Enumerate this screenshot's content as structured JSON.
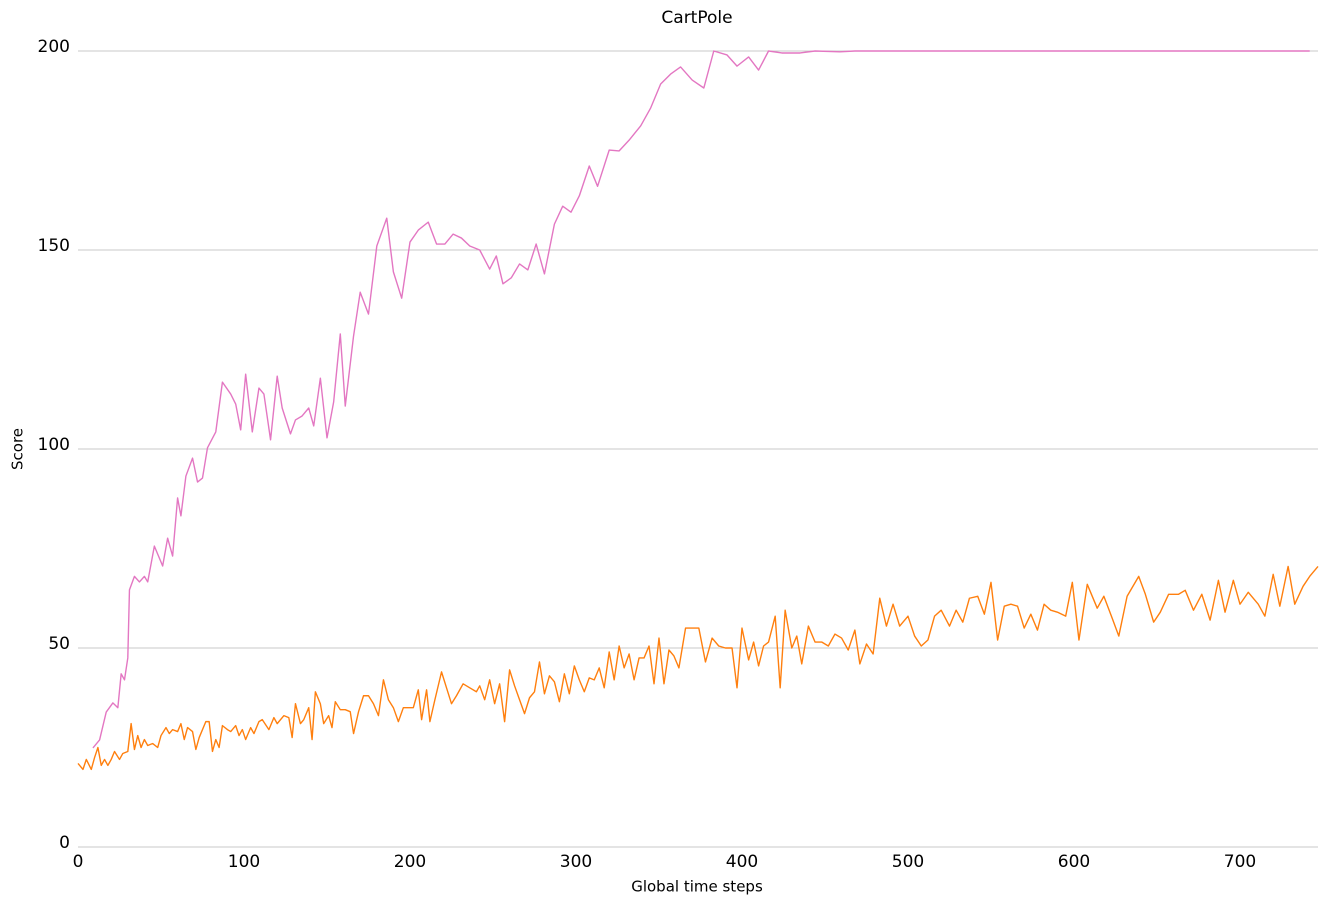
{
  "chart_data": {
    "type": "line",
    "title": "CartPole",
    "xlabel": "Global time steps",
    "ylabel": "Score",
    "xlim": [
      0,
      747
    ],
    "xticks": [
      0,
      100,
      200,
      300,
      400,
      500,
      600,
      700
    ],
    "ylim": [
      0,
      200
    ],
    "yticks": [
      0,
      50,
      100,
      150,
      200
    ],
    "grid": true,
    "series": [
      {
        "color": "#e377c2",
        "x": [
          9,
          13,
          17,
          21,
          24,
          26,
          28,
          30,
          31,
          34,
          37,
          40,
          42,
          46,
          51,
          54,
          57,
          60,
          62,
          65,
          69,
          72,
          75,
          78,
          83,
          87,
          92,
          95,
          98,
          101,
          105,
          109,
          112,
          116,
          120,
          123,
          128,
          131,
          135,
          139,
          142,
          146,
          150,
          154,
          158,
          161,
          166,
          170,
          175,
          180,
          186,
          190,
          195,
          200,
          205,
          211,
          216,
          221,
          226,
          231,
          236,
          242,
          248,
          252,
          256,
          261,
          266,
          271,
          276,
          281,
          287,
          292,
          297,
          302,
          308,
          313,
          320,
          326,
          332,
          339,
          345,
          351,
          357,
          363,
          370,
          377,
          383,
          391,
          397,
          404,
          410,
          416,
          424,
          435,
          444,
          459,
          468,
          500,
          600,
          700,
          742
        ],
        "values": [
          24.9,
          26.9,
          33.9,
          36.2,
          35,
          43.5,
          42,
          47.5,
          64.6,
          68,
          66.6,
          68,
          66.6,
          75.6,
          70.6,
          77.6,
          73.1,
          87.7,
          83.2,
          93.2,
          97.7,
          91.7,
          92.7,
          100.3,
          104.3,
          116.8,
          113.8,
          111.3,
          104.8,
          118.8,
          104.3,
          115.3,
          113.8,
          102.3,
          118.3,
          110.3,
          103.8,
          107.3,
          108.3,
          110.3,
          105.8,
          117.8,
          102.8,
          111.8,
          128.9,
          110.8,
          128.4,
          139.4,
          133.9,
          151,
          158,
          144.5,
          137.9,
          152,
          155,
          157,
          151.5,
          151.5,
          154,
          153,
          151,
          150,
          145.2,
          148.5,
          141.5,
          143,
          146.5,
          145,
          151.5,
          144,
          156.5,
          161,
          159.5,
          163.6,
          171.1,
          166,
          175.1,
          174.9,
          177.6,
          181.2,
          185.7,
          191.7,
          194.2,
          196,
          192.7,
          190.7,
          200,
          199,
          196.2,
          198.5,
          195.2,
          200,
          199.5,
          199.5,
          200,
          199.8,
          200,
          200,
          200,
          200,
          200
        ]
      },
      {
        "color": "#ff7f0e",
        "x": [
          0,
          3,
          5,
          8,
          10,
          12,
          14,
          16,
          18,
          20,
          22,
          25,
          27,
          30,
          32,
          34,
          36,
          38,
          40,
          42,
          45,
          48,
          50,
          53,
          55,
          57,
          60,
          62,
          64,
          66,
          69,
          71,
          73,
          77,
          79,
          81,
          83,
          85,
          87,
          90,
          92,
          95,
          97,
          99,
          101,
          104,
          106,
          109,
          111,
          115,
          118,
          120,
          124,
          127,
          129,
          131,
          134,
          136,
          139,
          141,
          143,
          146,
          148,
          151,
          153,
          155,
          158,
          161,
          164,
          166,
          169,
          172,
          175,
          178,
          181,
          184,
          187,
          190,
          193,
          196,
          199,
          202,
          205,
          207,
          210,
          212,
          215,
          219,
          222,
          225,
          228,
          232,
          236,
          240,
          242,
          245,
          248,
          251,
          254,
          257,
          260,
          263,
          266,
          269,
          272,
          275,
          278,
          281,
          284,
          287,
          290,
          293,
          296,
          299,
          302,
          305,
          308,
          311,
          314,
          317,
          320,
          323,
          326,
          329,
          332,
          335,
          338,
          341,
          344,
          347,
          350,
          353,
          356,
          359,
          362,
          366,
          370,
          374,
          378,
          382,
          386,
          390,
          394,
          397,
          400,
          404,
          407,
          410,
          413,
          416,
          420,
          423,
          426,
          430,
          433,
          436,
          440,
          444,
          448,
          452,
          456,
          460,
          464,
          468,
          471,
          475,
          479,
          483,
          487,
          491,
          495,
          500,
          504,
          508,
          512,
          516,
          520,
          525,
          529,
          533,
          537,
          542,
          546,
          550,
          554,
          558,
          562,
          566,
          570,
          574,
          578,
          582,
          586,
          590,
          595,
          599,
          603,
          608,
          614,
          618,
          623,
          627,
          632,
          639,
          643,
          648,
          652,
          657,
          663,
          667,
          672,
          677,
          682,
          687,
          691,
          696,
          700,
          705,
          711,
          715,
          720,
          724,
          729,
          733,
          738,
          742,
          747
        ],
        "values": [
          21,
          19.5,
          22,
          19.5,
          22.5,
          25,
          20.5,
          22,
          20.5,
          22,
          24,
          22,
          23.5,
          24,
          31,
          24.5,
          28,
          25,
          27,
          25.5,
          26,
          25,
          28,
          30,
          28.5,
          29.5,
          29,
          31,
          27,
          30,
          29,
          24.5,
          27.5,
          31.5,
          31.5,
          24,
          27,
          25,
          30.5,
          29.5,
          29,
          30.5,
          28,
          29.5,
          27,
          30,
          28.5,
          31.5,
          32,
          29.5,
          32.5,
          31,
          33,
          32.5,
          27.5,
          36,
          31,
          32,
          35,
          27,
          39,
          36,
          31,
          33,
          30,
          36.5,
          34.5,
          34.5,
          34,
          28.5,
          34,
          38,
          38,
          36,
          33,
          42,
          37,
          35,
          31.5,
          35,
          35,
          35,
          39.5,
          32,
          39.5,
          31.5,
          37,
          44,
          40,
          36,
          38,
          41,
          40,
          39,
          40.5,
          37,
          42,
          36,
          41,
          31.5,
          44.5,
          40.5,
          37,
          33.5,
          37.5,
          39,
          46.5,
          38.5,
          43,
          41.5,
          36.5,
          43.5,
          38.5,
          45.5,
          42,
          39,
          42.5,
          42,
          45,
          40,
          49,
          42,
          50.5,
          45,
          48.5,
          42,
          47.5,
          47.5,
          50.5,
          41,
          52.5,
          41,
          49.5,
          48,
          45,
          55,
          55,
          55,
          46.5,
          52.5,
          50.5,
          50,
          50,
          40,
          55,
          47,
          51.5,
          45.5,
          50.5,
          51.5,
          58,
          40,
          59.5,
          50,
          53,
          46,
          55.5,
          51.5,
          51.5,
          50.5,
          53.5,
          52.5,
          49.5,
          54.5,
          46,
          51,
          48.5,
          62.5,
          55.5,
          61,
          55.5,
          58,
          53,
          50.5,
          52,
          58,
          59.5,
          55.5,
          59.5,
          56.5,
          62.5,
          63,
          58.5,
          66.5,
          52,
          60.5,
          61,
          60.5,
          55,
          58.5,
          54.5,
          61,
          59.5,
          59,
          58,
          66.5,
          52,
          66,
          60,
          63,
          57.5,
          53,
          63,
          68,
          63.5,
          56.5,
          59,
          63.5,
          63.5,
          64.5,
          59.5,
          63.5,
          57,
          67,
          59,
          67,
          61,
          64,
          61,
          58,
          68.5,
          60.5,
          70.5,
          61,
          65.5,
          68,
          70.5
        ]
      }
    ]
  }
}
